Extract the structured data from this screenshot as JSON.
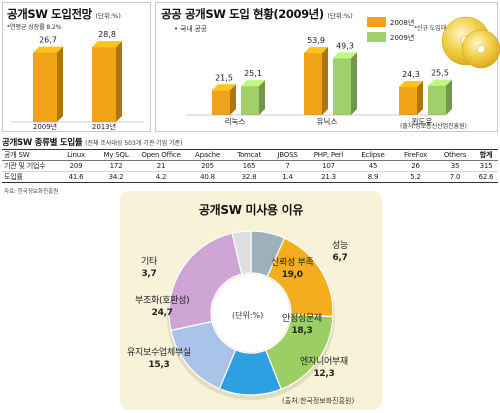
{
  "chart_data": [
    {
      "type": "bar",
      "title": "공개SW 도입전망",
      "unit": "(단위:%)",
      "note": "*연평균 성장률 8.2%",
      "categories": [
        "2009년",
        "2013년"
      ],
      "values": [
        26.7,
        28.8
      ],
      "value_labels": [
        "26,7",
        "28,8"
      ]
    },
    {
      "type": "bar",
      "title": "공공 공개SW 도입 현황(2009년)",
      "unit": "(단위:%)",
      "subtitle": "• 국내 공공",
      "note": "*신규 도입대수 기준",
      "source": "(출처:정보통신산업진흥원)",
      "categories": [
        "리눅스",
        "유닉스",
        "윈도우"
      ],
      "series": [
        {
          "name": "2008년",
          "color": "#f0a316",
          "values": [
            21.5,
            53.9,
            24.3
          ],
          "value_labels": [
            "21,5",
            "53,9",
            "24,3"
          ]
        },
        {
          "name": "2009년",
          "color": "#9fd06a",
          "values": [
            25.1,
            49.3,
            25.5
          ],
          "value_labels": [
            "25,1",
            "49,3",
            "25,5"
          ]
        }
      ]
    },
    {
      "type": "table",
      "title": "공개SW 종류별 도입률",
      "note": "(전체 조사대상 503개 기관·기업 기준)",
      "source": "자료: 한국정보화진흥원",
      "columns": [
        "공개 SW",
        "Linux",
        "My SQL",
        "Open Office",
        "Apache",
        "Tomcat",
        "JBOSS",
        "PHP, Perl",
        "Eclipse",
        "FireFox",
        "Others",
        "합계"
      ],
      "rows": [
        [
          "기관 및 기업수",
          "209",
          "172",
          "21",
          "205",
          "165",
          "7",
          "107",
          "45",
          "26",
          "35",
          "315"
        ],
        [
          "도입률",
          "41.6",
          "34.2",
          "4.2",
          "40.8",
          "32.8",
          "1.4",
          "21.3",
          "8.9",
          "5.2",
          "7.0",
          "62.6"
        ]
      ]
    },
    {
      "type": "pie",
      "title": "공개SW 미사용 이유",
      "unit": "(단위:%)",
      "source": "(출처:한국정보화진흥원)",
      "slices": [
        {
          "label": "성능",
          "value": 6.7,
          "value_label": "6,7",
          "color": "#9db1bd"
        },
        {
          "label": "신뢰성 부족",
          "value": 19.0,
          "value_label": "19,0",
          "color": "#f3ad1f"
        },
        {
          "label": "안정성문제",
          "value": 18.3,
          "value_label": "18,3",
          "color": "#9ccf63"
        },
        {
          "label": "엔지니어부재",
          "value": 12.3,
          "value_label": "12,3",
          "color": "#2e9fe0"
        },
        {
          "label": "유지보수업체부실",
          "value": 15.3,
          "value_label": "15,3",
          "color": "#a9c3e9"
        },
        {
          "label": "부조화(호환성)",
          "value": 24.7,
          "value_label": "24,7",
          "color": "#cfa5d6"
        },
        {
          "label": "기타",
          "value": 3.7,
          "value_label": "3,7",
          "color": "#dedede"
        }
      ]
    }
  ]
}
